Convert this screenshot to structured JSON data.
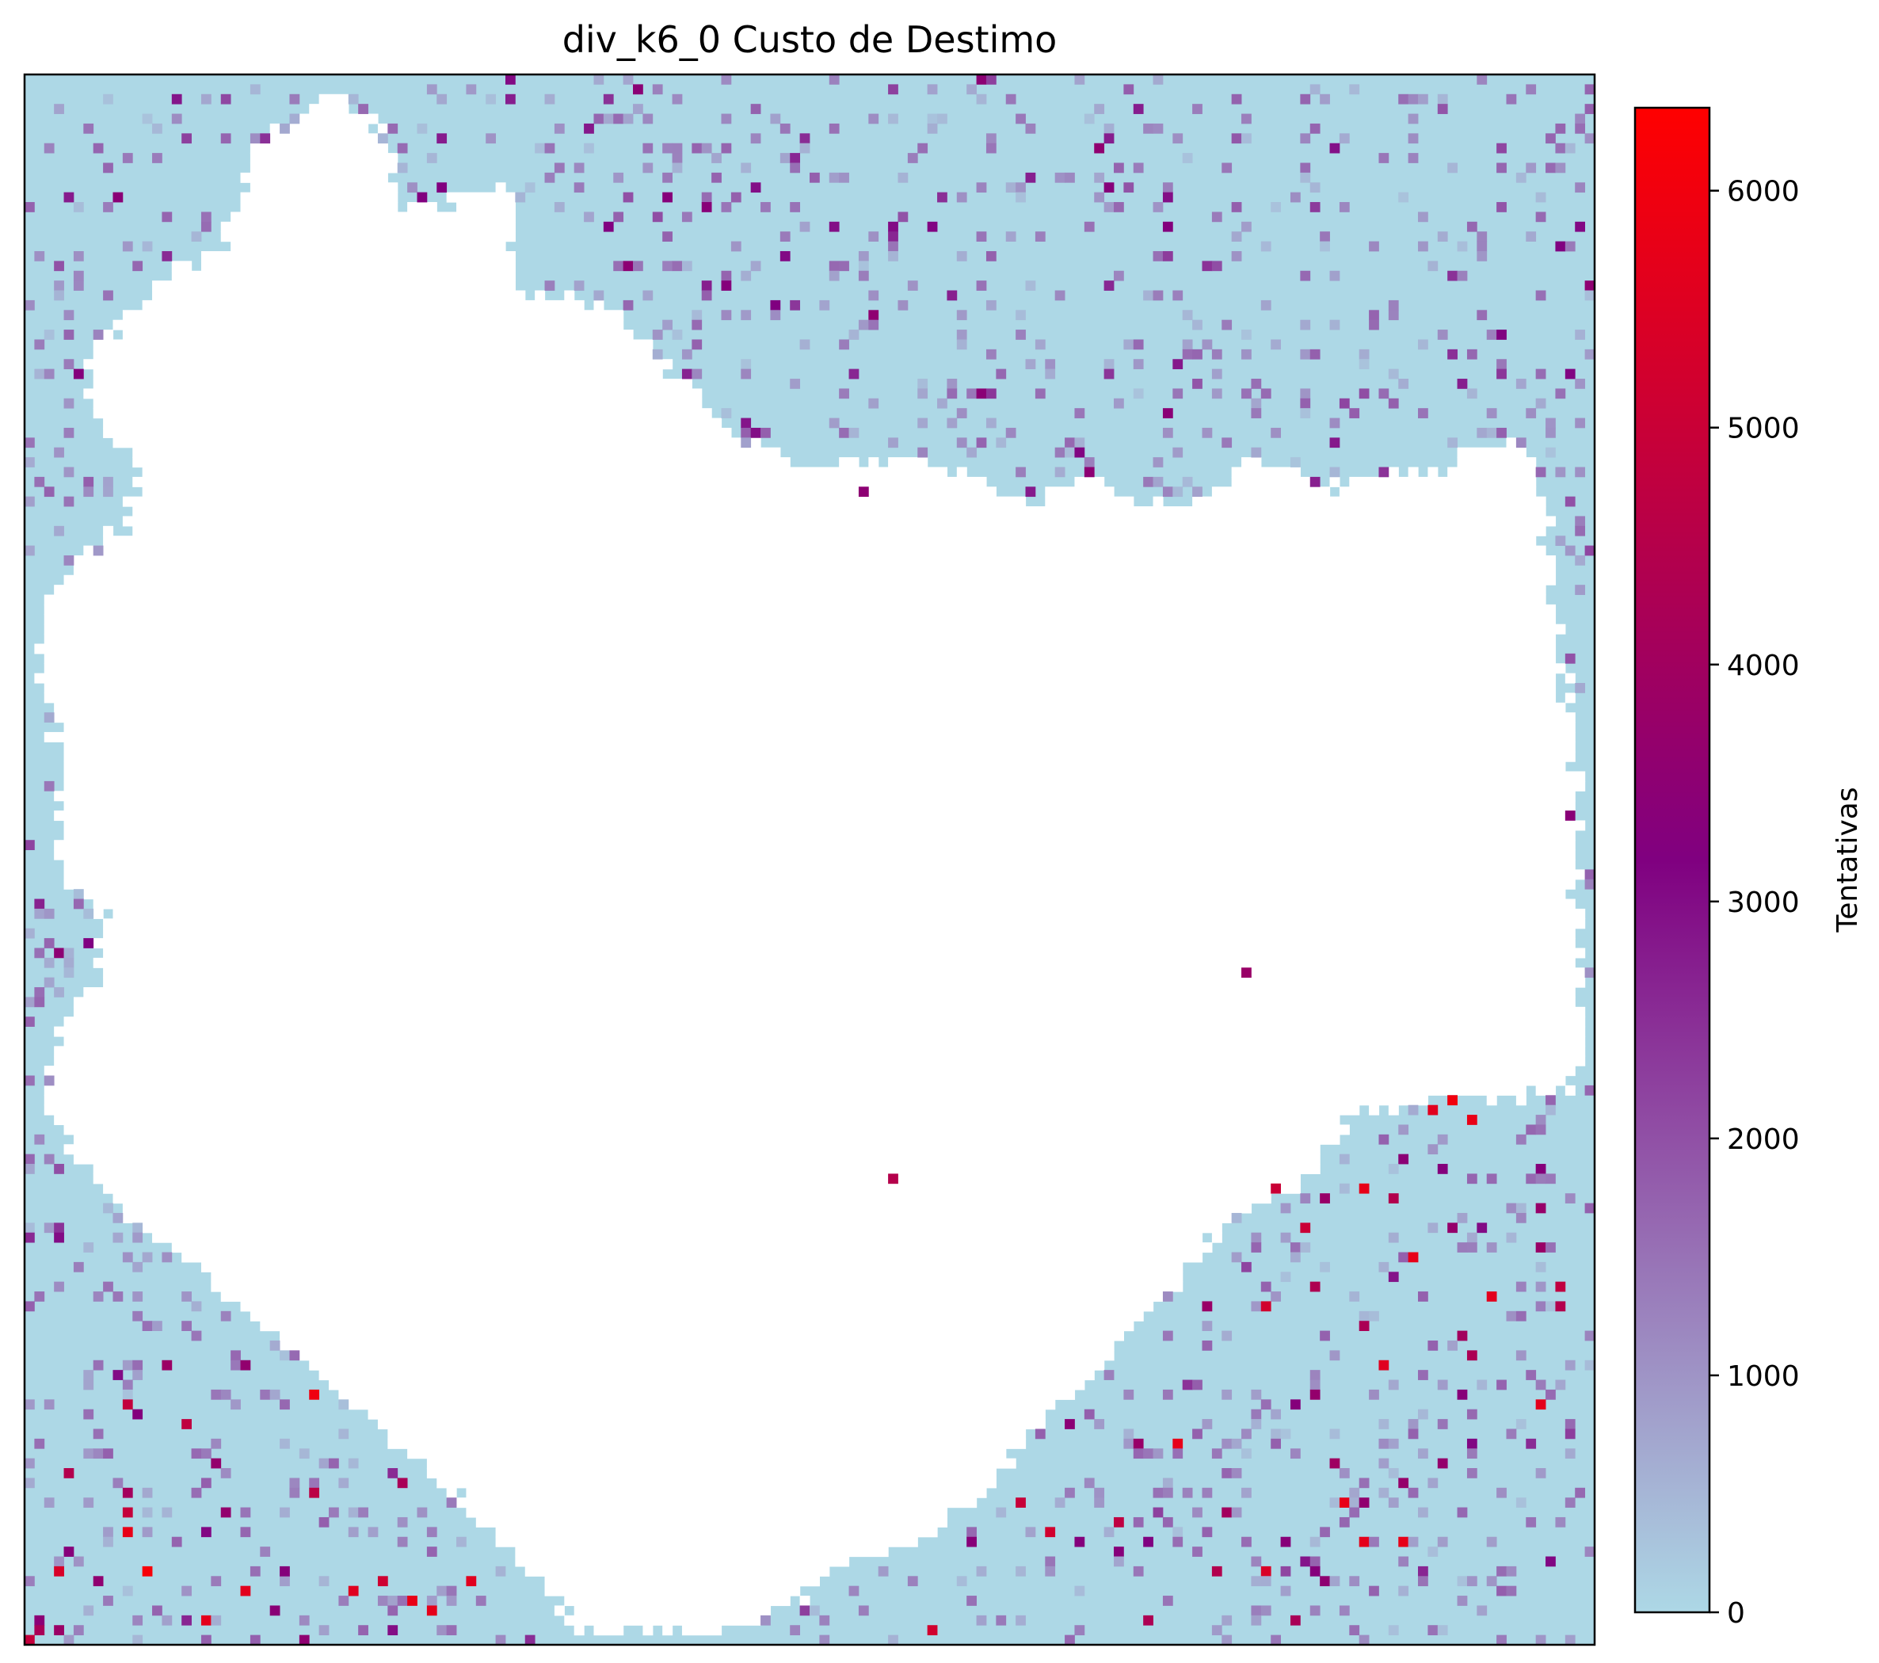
{
  "chart_data": {
    "type": "heatmap",
    "title": "div_k6_0 Custo de Destimo",
    "xlabel": "",
    "ylabel": "",
    "x_ticks": [],
    "y_ticks": [],
    "grid": false,
    "colorbar": {
      "label": "Tentativas",
      "range": [
        0,
        6350
      ],
      "ticks": [
        0,
        1000,
        2000,
        3000,
        4000,
        5000,
        6000
      ],
      "tick_labels": [
        "0",
        "1000",
        "2000",
        "3000",
        "4000",
        "5000",
        "6000"
      ],
      "colors": [
        {
          "stop": 0.0,
          "color": "#add8e6"
        },
        {
          "stop": 0.5,
          "color": "#800080"
        },
        {
          "stop": 1.0,
          "color": "#ff0000"
        }
      ]
    },
    "grid_shape": [
      160,
      160
    ],
    "background_value": 0,
    "masked_color": "#ffffff",
    "description_of_masked_region": "large central region with no data (white)",
    "hotspots": [
      {
        "col": 145,
        "row": 104,
        "value": 6000
      },
      {
        "col": 147,
        "row": 106,
        "value": 5800
      },
      {
        "col": 143,
        "row": 105,
        "value": 5600
      },
      {
        "col": 41,
        "row": 156,
        "value": 5700
      },
      {
        "col": 45,
        "row": 153,
        "value": 5600
      },
      {
        "col": 92,
        "row": 158,
        "value": 5200
      },
      {
        "col": 127,
        "row": 113,
        "value": 5000
      },
      {
        "col": 88,
        "row": 112,
        "value": 4500
      },
      {
        "col": 38,
        "row": 143,
        "value": 4200
      },
      {
        "col": 124,
        "row": 91,
        "value": 3800
      },
      {
        "col": 85,
        "row": 42,
        "value": 3500
      },
      {
        "col": 26,
        "row": 152,
        "value": 3300
      },
      {
        "col": 9,
        "row": 132,
        "value": 3000
      }
    ]
  }
}
